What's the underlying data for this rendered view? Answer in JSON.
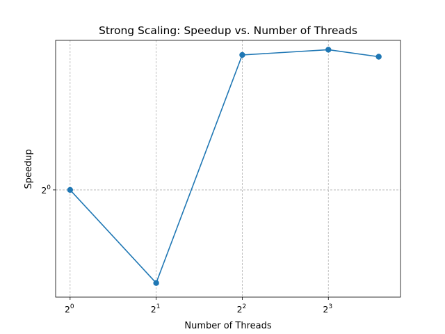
{
  "chart_data": {
    "type": "line",
    "title": "Strong Scaling: Speedup vs. Number of Threads",
    "xlabel": "Number of Threads",
    "ylabel": "Speedup",
    "xscale": "log2",
    "yscale": "log2",
    "grid": true,
    "x": [
      1,
      2,
      4,
      8,
      12
    ],
    "series": [
      {
        "values": [
          1.0,
          0.72,
          1.61,
          1.64,
          1.6
        ],
        "color": "#1f77b4",
        "marker": "circle"
      }
    ],
    "xticks": [
      {
        "value": 1,
        "base": "2",
        "exp": "0"
      },
      {
        "value": 2,
        "base": "2",
        "exp": "1"
      },
      {
        "value": 4,
        "base": "2",
        "exp": "2"
      },
      {
        "value": 8,
        "base": "2",
        "exp": "3"
      }
    ],
    "yticks": [
      {
        "value": 1,
        "base": "2",
        "exp": "0"
      }
    ],
    "xlim": [
      0.89,
      14.3
    ],
    "ylim": [
      0.685,
      1.695
    ]
  }
}
